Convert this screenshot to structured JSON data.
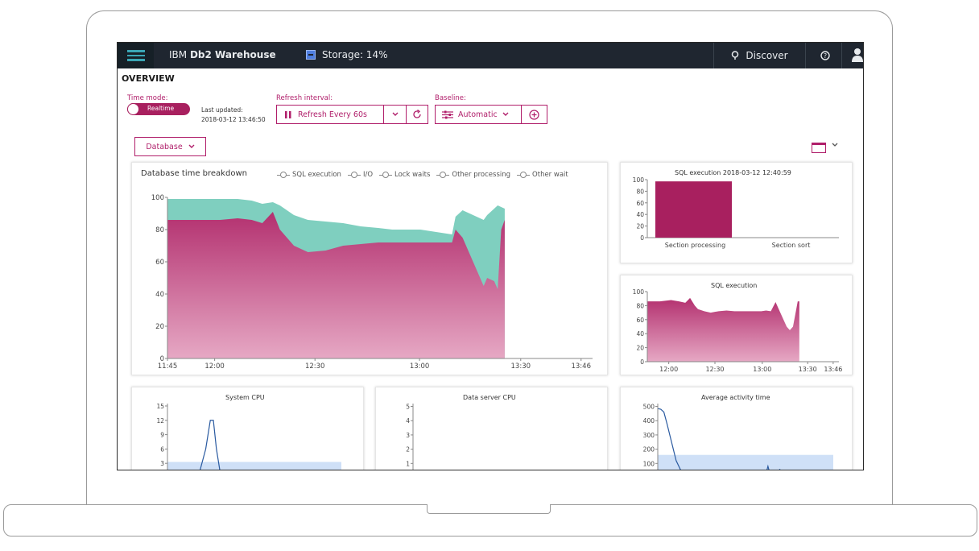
{
  "topbar": {
    "brand_prefix": "IBM",
    "brand_name": "Db2 Warehouse",
    "storage": "Storage: 14%",
    "discover": "Discover",
    "icons": [
      "menu-icon",
      "storage-icon",
      "bulb-icon",
      "help-icon",
      "user-icon"
    ]
  },
  "page": {
    "title": "OVERVIEW"
  },
  "controls": {
    "time_mode_label": "Time mode:",
    "time_mode_value": "Realtime",
    "last_updated_label": "Last updated:",
    "last_updated_value": "2018-03-12 13:46:50",
    "refresh_label": "Refresh interval:",
    "refresh_value": "Refresh Every 60s",
    "baseline_label": "Baseline:",
    "baseline_value": "Automatic",
    "database_select": "Database"
  },
  "colors": {
    "accent": "#b01e6a",
    "topbar": "#1f2630",
    "sql": "#c0407e",
    "io": "#7fcfbf",
    "lock": "#8a93c8"
  },
  "chart_data": [
    {
      "id": "db-time",
      "type": "area",
      "title": "Database time breakdown",
      "legend": [
        "SQL execution",
        "I/O",
        "Lock waits",
        "Other processing",
        "Other wait"
      ],
      "xticks": [
        "11:45",
        "12:00",
        "12:30",
        "13:00",
        "13:30",
        "13:46"
      ],
      "yticks": [
        0,
        20,
        40,
        60,
        80,
        100
      ],
      "ylim": [
        0,
        100
      ],
      "xlim": [
        0,
        121
      ],
      "x": [
        0,
        8,
        15,
        20,
        24,
        27,
        30,
        32,
        34,
        36,
        40,
        45,
        50,
        55,
        60,
        64,
        68,
        72,
        75,
        78,
        81,
        82,
        84,
        86,
        88,
        90,
        91,
        93,
        94,
        95,
        96
      ],
      "series": [
        {
          "name": "SQL execution",
          "values": [
            86,
            86,
            86,
            87,
            86,
            84,
            91,
            80,
            75,
            70,
            66,
            67,
            70,
            71,
            72,
            72,
            72,
            72,
            72,
            72,
            72,
            80,
            75,
            65,
            55,
            45,
            50,
            48,
            43,
            80,
            86
          ]
        },
        {
          "name": "I/O",
          "values": [
            99,
            99,
            99,
            99,
            98,
            96,
            97,
            95,
            92,
            89,
            86,
            85,
            84,
            82,
            81,
            80,
            80,
            80,
            79,
            78,
            77,
            88,
            92,
            90,
            88,
            86,
            89,
            93,
            95,
            94,
            93
          ]
        }
      ]
    },
    {
      "id": "sql-bar",
      "type": "bar",
      "title": "SQL execution 2018-03-12 12:40:59",
      "categories": [
        "Section processing",
        "Section sort"
      ],
      "values": [
        97,
        0
      ],
      "yticks": [
        0,
        20,
        40,
        60,
        80,
        100
      ],
      "ylim": [
        0,
        100
      ]
    },
    {
      "id": "sql-exec",
      "type": "area",
      "title": "SQL execution",
      "xticks": [
        "12:00",
        "12:30",
        "13:00",
        "13:30",
        "13:46"
      ],
      "yticks": [
        0,
        20,
        40,
        60,
        80,
        100
      ],
      "ylim": [
        0,
        100
      ],
      "xlim": [
        0,
        121
      ],
      "x": [
        0,
        8,
        15,
        20,
        24,
        27,
        30,
        32,
        36,
        40,
        45,
        50,
        55,
        60,
        64,
        68,
        72,
        75,
        78,
        81,
        84,
        88,
        90,
        92,
        95,
        96
      ],
      "values": [
        86,
        86,
        88,
        86,
        84,
        91,
        80,
        75,
        72,
        70,
        72,
        73,
        72,
        72,
        72,
        72,
        72,
        73,
        72,
        85,
        70,
        50,
        45,
        50,
        86,
        86
      ]
    },
    {
      "id": "system-cpu",
      "type": "line",
      "title": "System CPU",
      "yticks": [
        3,
        6,
        9,
        12,
        15
      ],
      "ylim": [
        0,
        15.5
      ],
      "xlim": [
        0,
        121
      ],
      "x": [
        0,
        10,
        20,
        25,
        28,
        30,
        32,
        35,
        40,
        50
      ],
      "values": [
        0,
        0,
        0,
        6,
        12,
        12,
        6,
        0,
        0,
        0
      ],
      "baseline_band": 3.3
    },
    {
      "id": "data-server-cpu",
      "type": "line",
      "title": "Data server CPU",
      "yticks": [
        1,
        2,
        3,
        4,
        5
      ],
      "ylim": [
        0,
        5.2
      ],
      "values": []
    },
    {
      "id": "avg-activity",
      "type": "line",
      "title": "Average activity time",
      "yticks": [
        100,
        200,
        300,
        400,
        500
      ],
      "ylim": [
        0,
        520
      ],
      "xlim": [
        0,
        121
      ],
      "x": [
        0,
        2,
        4,
        6,
        9,
        12,
        16,
        20,
        24,
        40,
        60,
        70,
        72,
        74,
        80
      ],
      "values": [
        485,
        480,
        460,
        380,
        250,
        120,
        30,
        0,
        0,
        0,
        0,
        0,
        80,
        0,
        60
      ],
      "baseline_band": 160
    }
  ]
}
